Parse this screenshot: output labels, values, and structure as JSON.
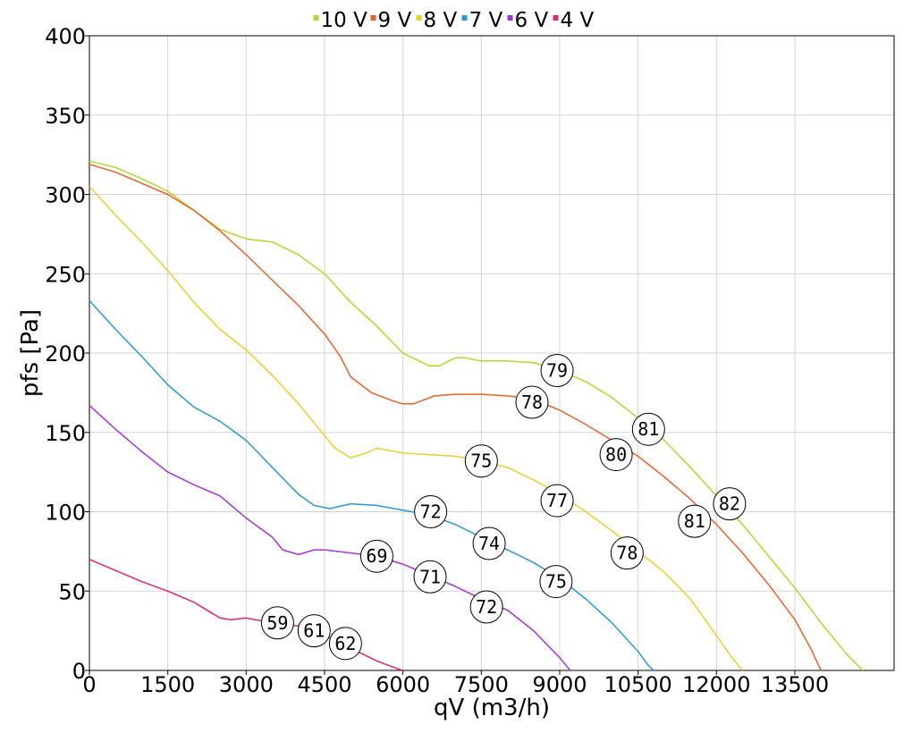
{
  "chart_data": {
    "type": "line",
    "xlabel": "qV (m3/h)",
    "ylabel": "pfs [Pa]",
    "xlim": [
      0,
      15400
    ],
    "ylim": [
      0,
      400
    ],
    "x_ticks": [
      0,
      1500,
      3000,
      4500,
      6000,
      7500,
      9000,
      10500,
      12000,
      13500
    ],
    "y_ticks": [
      0,
      50,
      100,
      150,
      200,
      250,
      300,
      350,
      400
    ],
    "x_tick_labels": [
      "0",
      "1500",
      "3000",
      "4500",
      "6000",
      "7500",
      "9000",
      "10500",
      "12000",
      "13500"
    ],
    "y_tick_labels": [
      "0",
      "50",
      "100",
      "150",
      "200",
      "250",
      "300",
      "350",
      "400"
    ],
    "grid": true,
    "legend_position": "top",
    "series": [
      {
        "name": "10 V",
        "color": "#b5d62a",
        "points": [
          [
            0,
            321
          ],
          [
            500,
            317
          ],
          [
            1000,
            310
          ],
          [
            1500,
            302
          ],
          [
            2000,
            290
          ],
          [
            2500,
            278
          ],
          [
            3000,
            272
          ],
          [
            3500,
            270
          ],
          [
            4000,
            262
          ],
          [
            4500,
            250
          ],
          [
            5000,
            232
          ],
          [
            5500,
            217
          ],
          [
            6000,
            200
          ],
          [
            6500,
            192
          ],
          [
            6700,
            192
          ],
          [
            7000,
            197
          ],
          [
            7200,
            197
          ],
          [
            7500,
            195
          ],
          [
            8000,
            195
          ],
          [
            8500,
            194
          ],
          [
            9000,
            189
          ],
          [
            9500,
            182
          ],
          [
            10000,
            172
          ],
          [
            10500,
            159
          ],
          [
            11000,
            145
          ],
          [
            11500,
            128
          ],
          [
            12000,
            110
          ],
          [
            12500,
            92
          ],
          [
            13000,
            72
          ],
          [
            13500,
            52
          ],
          [
            14000,
            30
          ],
          [
            14500,
            10
          ],
          [
            14800,
            0
          ]
        ]
      },
      {
        "name": "9 V",
        "color": "#e8622a",
        "points": [
          [
            0,
            319
          ],
          [
            500,
            314
          ],
          [
            1000,
            307
          ],
          [
            1500,
            300
          ],
          [
            2000,
            290
          ],
          [
            2500,
            277
          ],
          [
            3000,
            262
          ],
          [
            3500,
            246
          ],
          [
            4000,
            230
          ],
          [
            4500,
            212
          ],
          [
            4800,
            198
          ],
          [
            5000,
            185
          ],
          [
            5400,
            175
          ],
          [
            5800,
            170
          ],
          [
            6000,
            168
          ],
          [
            6200,
            168
          ],
          [
            6600,
            173
          ],
          [
            7000,
            174
          ],
          [
            7500,
            174
          ],
          [
            8000,
            173
          ],
          [
            8500,
            171
          ],
          [
            9000,
            164
          ],
          [
            9500,
            155
          ],
          [
            10000,
            145
          ],
          [
            10500,
            135
          ],
          [
            11000,
            122
          ],
          [
            11500,
            108
          ],
          [
            12000,
            92
          ],
          [
            12500,
            74
          ],
          [
            13000,
            54
          ],
          [
            13500,
            32
          ],
          [
            13800,
            14
          ],
          [
            14000,
            0
          ]
        ]
      },
      {
        "name": "8 V",
        "color": "#e3d12c",
        "points": [
          [
            0,
            305
          ],
          [
            500,
            287
          ],
          [
            1000,
            270
          ],
          [
            1500,
            252
          ],
          [
            2000,
            232
          ],
          [
            2500,
            215
          ],
          [
            3000,
            202
          ],
          [
            3500,
            186
          ],
          [
            4000,
            168
          ],
          [
            4500,
            148
          ],
          [
            4700,
            140
          ],
          [
            5000,
            134
          ],
          [
            5300,
            137
          ],
          [
            5500,
            140
          ],
          [
            6000,
            137
          ],
          [
            6500,
            136
          ],
          [
            7000,
            135
          ],
          [
            7500,
            132
          ],
          [
            8000,
            128
          ],
          [
            8500,
            120
          ],
          [
            9000,
            111
          ],
          [
            9500,
            100
          ],
          [
            10000,
            88
          ],
          [
            10500,
            75
          ],
          [
            11000,
            62
          ],
          [
            11500,
            45
          ],
          [
            12000,
            22
          ],
          [
            12300,
            8
          ],
          [
            12500,
            0
          ]
        ]
      },
      {
        "name": "7 V",
        "color": "#2b97d6",
        "points": [
          [
            0,
            233
          ],
          [
            500,
            215
          ],
          [
            1000,
            198
          ],
          [
            1500,
            180
          ],
          [
            2000,
            166
          ],
          [
            2500,
            157
          ],
          [
            3000,
            145
          ],
          [
            3500,
            128
          ],
          [
            4000,
            111
          ],
          [
            4300,
            104
          ],
          [
            4600,
            102
          ],
          [
            5000,
            105
          ],
          [
            5500,
            104
          ],
          [
            6000,
            101
          ],
          [
            6500,
            98
          ],
          [
            7000,
            92
          ],
          [
            7500,
            84
          ],
          [
            8000,
            76
          ],
          [
            8500,
            68
          ],
          [
            9000,
            58
          ],
          [
            9500,
            45
          ],
          [
            10000,
            30
          ],
          [
            10500,
            12
          ],
          [
            10700,
            3
          ],
          [
            10800,
            0
          ]
        ]
      },
      {
        "name": "6 V",
        "color": "#a735d6",
        "points": [
          [
            0,
            167
          ],
          [
            500,
            152
          ],
          [
            1000,
            138
          ],
          [
            1500,
            125
          ],
          [
            2000,
            117
          ],
          [
            2500,
            110
          ],
          [
            3000,
            96
          ],
          [
            3500,
            84
          ],
          [
            3700,
            76
          ],
          [
            4000,
            73
          ],
          [
            4300,
            76
          ],
          [
            4500,
            76
          ],
          [
            5000,
            74
          ],
          [
            5500,
            72
          ],
          [
            6000,
            67
          ],
          [
            6500,
            60
          ],
          [
            7000,
            53
          ],
          [
            7500,
            45
          ],
          [
            8000,
            38
          ],
          [
            8500,
            25
          ],
          [
            9000,
            8
          ],
          [
            9200,
            0
          ]
        ]
      },
      {
        "name": "4 V",
        "color": "#e0266f",
        "points": [
          [
            0,
            70
          ],
          [
            500,
            63
          ],
          [
            1000,
            56
          ],
          [
            1500,
            50
          ],
          [
            2000,
            43
          ],
          [
            2300,
            37
          ],
          [
            2500,
            33
          ],
          [
            2700,
            32
          ],
          [
            3000,
            33
          ],
          [
            3500,
            30
          ],
          [
            4000,
            28
          ],
          [
            4500,
            22
          ],
          [
            5000,
            14
          ],
          [
            5500,
            6
          ],
          [
            5900,
            1
          ],
          [
            6000,
            0
          ]
        ]
      }
    ],
    "annotations": [
      {
        "label": "79",
        "x": 8950,
        "y": 189
      },
      {
        "label": "81",
        "x": 10700,
        "y": 152
      },
      {
        "label": "82",
        "x": 12250,
        "y": 105
      },
      {
        "label": "78",
        "x": 8470,
        "y": 169
      },
      {
        "label": "80",
        "x": 10080,
        "y": 136
      },
      {
        "label": "81",
        "x": 11580,
        "y": 94
      },
      {
        "label": "75",
        "x": 7500,
        "y": 132
      },
      {
        "label": "77",
        "x": 8950,
        "y": 107
      },
      {
        "label": "78",
        "x": 10290,
        "y": 74
      },
      {
        "label": "72",
        "x": 6530,
        "y": 100
      },
      {
        "label": "74",
        "x": 7650,
        "y": 80
      },
      {
        "label": "75",
        "x": 8930,
        "y": 56
      },
      {
        "label": "69",
        "x": 5500,
        "y": 72
      },
      {
        "label": "71",
        "x": 6520,
        "y": 59
      },
      {
        "label": "72",
        "x": 7600,
        "y": 40
      },
      {
        "label": "59",
        "x": 3600,
        "y": 30
      },
      {
        "label": "61",
        "x": 4300,
        "y": 25
      },
      {
        "label": "62",
        "x": 4900,
        "y": 17
      }
    ]
  }
}
